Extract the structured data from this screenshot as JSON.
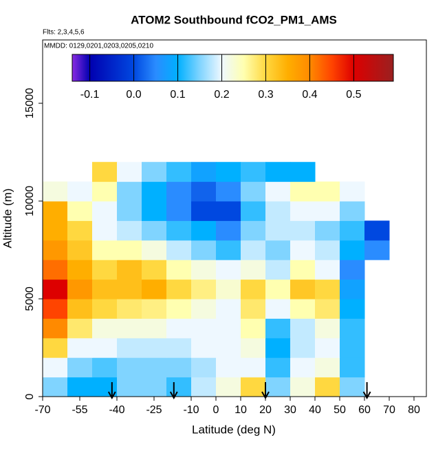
{
  "chart_data": {
    "type": "heatmap",
    "title": "ATOM2 Southbound fCO2_PM1_AMS",
    "subtitle": "Flts: 2,3,4,5,6",
    "annotation": "MMDD: 0129,0201,0203,0205,0210",
    "xlabel": "Latitude (deg N)",
    "ylabel": "Altitude (m)",
    "xlim": [
      -70,
      85
    ],
    "ylim": [
      0,
      18240
    ],
    "xticks": [
      -70,
      -55,
      -40,
      -25,
      -10,
      0,
      10,
      20,
      30,
      40,
      50,
      60,
      70,
      80
    ],
    "yticks": [
      0,
      5000,
      10000,
      15000
    ],
    "x_bins": [
      -70,
      -60,
      -50,
      -40,
      -30,
      -20,
      -10,
      0,
      10,
      20,
      30,
      40,
      50,
      60,
      70
    ],
    "y_bins": [
      0,
      1000,
      2000,
      3000,
      4000,
      5000,
      6000,
      7000,
      8000,
      9000,
      10000,
      11000,
      12000
    ],
    "values": [
      [
        0.15,
        0.1,
        0.1,
        0.15,
        0.15,
        0.12,
        0.18,
        0.22,
        0.3,
        0.15,
        0.22,
        0.3,
        0.15,
        null
      ],
      [
        0.2,
        0.15,
        0.13,
        0.15,
        0.15,
        0.15,
        0.17,
        0.2,
        0.2,
        0.12,
        0.2,
        0.22,
        0.12,
        null
      ],
      [
        0.3,
        0.2,
        0.2,
        0.18,
        0.18,
        0.18,
        0.2,
        0.2,
        0.22,
        0.1,
        0.18,
        0.2,
        0.12,
        null
      ],
      [
        0.4,
        0.28,
        0.22,
        0.22,
        0.22,
        0.2,
        0.2,
        0.2,
        0.25,
        0.12,
        0.18,
        0.22,
        0.12,
        null
      ],
      [
        0.45,
        0.33,
        0.3,
        0.28,
        0.27,
        0.25,
        0.22,
        0.2,
        0.28,
        0.2,
        0.25,
        0.28,
        0.1,
        null
      ],
      [
        0.5,
        0.38,
        0.33,
        0.33,
        0.35,
        0.3,
        0.27,
        0.23,
        0.3,
        0.25,
        0.32,
        0.3,
        0.08,
        null
      ],
      [
        0.42,
        0.35,
        0.3,
        0.33,
        0.3,
        0.25,
        0.22,
        0.2,
        0.22,
        0.18,
        0.25,
        0.2,
        0.05,
        null
      ],
      [
        0.38,
        0.32,
        0.25,
        0.25,
        0.22,
        0.18,
        0.15,
        0.12,
        0.18,
        0.15,
        0.2,
        0.18,
        0.1,
        0.05
      ],
      [
        0.35,
        0.3,
        0.2,
        0.18,
        0.15,
        0.12,
        0.1,
        0.05,
        0.15,
        0.18,
        0.18,
        0.15,
        0.12,
        0.0
      ],
      [
        0.35,
        0.25,
        0.2,
        0.15,
        0.1,
        0.05,
        0.0,
        0.0,
        0.12,
        0.18,
        0.2,
        0.2,
        0.15,
        null
      ],
      [
        0.22,
        0.2,
        0.25,
        0.15,
        0.1,
        0.05,
        0.02,
        0.05,
        0.15,
        0.2,
        0.25,
        0.25,
        0.2,
        null
      ],
      [
        null,
        null,
        0.3,
        0.2,
        0.15,
        0.12,
        0.08,
        0.1,
        0.12,
        0.1,
        0.1,
        null,
        null,
        null
      ]
    ],
    "colorbar_lim": [
      -0.14,
      0.59
    ],
    "colorbar_ticks": [
      -0.1,
      {
        "value": 0,
        "label": "0.0"
      },
      0.1,
      0.2,
      0.3,
      0.4,
      0.5
    ],
    "colorscale": [
      {
        "value": -0.14,
        "color": "#8a2be2"
      },
      {
        "value": -0.1,
        "color": "#0000b0"
      },
      {
        "value": 0,
        "color": "#0048e0"
      },
      {
        "value": 0.05,
        "color": "#2a8cff"
      },
      {
        "value": 0.1,
        "color": "#00b0ff"
      },
      {
        "value": 0.15,
        "color": "#80d4ff"
      },
      {
        "value": 0.2,
        "color": "#eef8ff"
      },
      {
        "value": 0.25,
        "color": "#ffffb0"
      },
      {
        "value": 0.3,
        "color": "#ffd840"
      },
      {
        "value": 0.35,
        "color": "#ffae00"
      },
      {
        "value": 0.4,
        "color": "#ff8a00"
      },
      {
        "value": 0.45,
        "color": "#ff4400"
      },
      {
        "value": 0.5,
        "color": "#dd0000"
      },
      {
        "value": 0.59,
        "color": "#9a2020"
      }
    ],
    "marker_lat": [
      -42,
      -17,
      20,
      61
    ]
  }
}
